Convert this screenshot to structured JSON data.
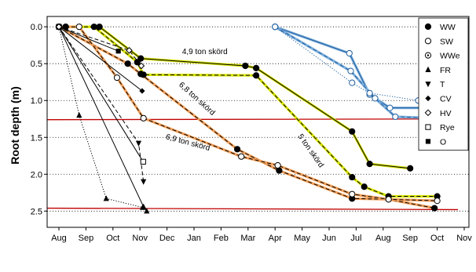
{
  "chart_data": {
    "type": "line",
    "title": "",
    "xlabel": "",
    "ylabel": "Root depth (m)",
    "x_ticks": [
      "Aug",
      "Sep",
      "Oct",
      "Nov",
      "Dec",
      "Jan",
      "Feb",
      "Mar",
      "Apr",
      "May",
      "Jun",
      "Jul",
      "Aug",
      "Sep",
      "Oct",
      "Nov"
    ],
    "xlim": [
      0,
      15
    ],
    "ylim": [
      2.72,
      -0.14
    ],
    "y_ticks": [
      "0.0",
      "0.5",
      "1.0",
      "1.5",
      "2.0",
      "2.5"
    ],
    "y_tick_values": [
      0,
      0.5,
      1.0,
      1.5,
      2.0,
      2.5
    ],
    "grid": "horizontal dotted",
    "legend_position": "top-right",
    "legend": [
      {
        "label": "WW",
        "marker": "circle-filled"
      },
      {
        "label": "SW",
        "marker": "circle-open"
      },
      {
        "label": "WWe",
        "marker": "circle-dot"
      },
      {
        "label": "FR",
        "marker": "triangle-up-filled"
      },
      {
        "label": "T",
        "marker": "triangle-down-filled"
      },
      {
        "label": "CV",
        "marker": "diamond-filled"
      },
      {
        "label": "HV",
        "marker": "diamond-open"
      },
      {
        "label": "Rye",
        "marker": "square-open"
      },
      {
        "label": "O",
        "marker": "square-filled"
      }
    ],
    "reference_lines": [
      {
        "y1": 1.26,
        "y2": 1.25,
        "color": "#c00000"
      },
      {
        "y1": 2.46,
        "y2": 2.48,
        "color": "#c00000"
      }
    ],
    "annotations": [
      {
        "text": "4,9 ton skörd",
        "x": 5.4,
        "y": 0.37,
        "angle": 0
      },
      {
        "text": "6,8 ton skörd",
        "x": 5.05,
        "y": 1.0,
        "angle": 42
      },
      {
        "text": "6,9 ton skörd",
        "x": 4.75,
        "y": 1.6,
        "angle": 15
      },
      {
        "text": "5 ton skörd",
        "x": 9.25,
        "y": 1.7,
        "angle": 55
      }
    ],
    "series": [
      {
        "marker": "circle-filled",
        "color": "#000000",
        "highlight": "#d8e400",
        "dash": "solid",
        "x": [
          0.0,
          0.25,
          1.5,
          3.03,
          6.9,
          7.3,
          10.85,
          11.5,
          13.0
        ],
        "y": [
          0.0,
          0.0,
          0.0,
          0.43,
          0.53,
          0.56,
          1.42,
          1.86,
          1.92
        ]
      },
      {
        "marker": "circle-filled",
        "color": "#000000",
        "highlight": "#d8e400",
        "dash": "dash",
        "x": [
          0.0,
          0.25,
          1.3,
          2.9,
          3.13,
          7.3,
          10.85,
          11.3,
          12.2,
          14.0
        ],
        "y": [
          0.0,
          0.0,
          0.0,
          0.48,
          0.65,
          0.66,
          2.04,
          2.17,
          2.3,
          2.3
        ]
      },
      {
        "marker": "circle-filled",
        "color": "#000000",
        "highlight": "#f3a05a",
        "dash": "dash",
        "x": [
          0.0,
          2.55,
          3.03,
          6.6,
          8.15,
          10.85,
          12.2,
          13.9
        ],
        "y": [
          0.0,
          0.5,
          0.64,
          1.66,
          1.95,
          2.33,
          2.34,
          2.46
        ]
      },
      {
        "marker": "circle-open",
        "color": "#000000",
        "highlight": "#f3a05a",
        "dash": "dash",
        "x": [
          0.0,
          0.75,
          2.15,
          3.13,
          6.75,
          8.1,
          10.85,
          12.2,
          14.0
        ],
        "y": [
          0.0,
          0.0,
          0.69,
          1.24,
          1.76,
          1.88,
          2.27,
          2.34,
          2.36
        ]
      },
      {
        "marker": "circle-open",
        "color": "#1f5fa0",
        "highlight": "#7fb0dc",
        "dash": "solid",
        "x": [
          8.0,
          10.75,
          11.5,
          12.25,
          14.0
        ],
        "y": [
          0.0,
          0.36,
          0.92,
          1.1,
          1.1
        ]
      },
      {
        "marker": "circle-open",
        "color": "#1f5fa0",
        "highlight": "#7fb0dc",
        "dash": "dash",
        "x": [
          8.0,
          10.8,
          11.7,
          12.45,
          14.0
        ],
        "y": [
          0.0,
          0.6,
          0.97,
          1.22,
          1.24
        ]
      },
      {
        "marker": "circle-open",
        "color": "#1f5fa0",
        "highlight": "",
        "dash": "dot",
        "x": [
          8.0,
          10.85,
          11.5,
          13.3
        ],
        "y": [
          0.0,
          0.76,
          0.9,
          1.0
        ]
      },
      {
        "marker": "triangle-up-filled",
        "color": "#000000",
        "highlight": "",
        "dash": "solid",
        "x": [
          0.0,
          3.13,
          3.25
        ],
        "y": [
          0.0,
          2.44,
          2.5
        ]
      },
      {
        "marker": "triangle-up-filled",
        "color": "#000000",
        "highlight": "",
        "dash": "dot",
        "x": [
          0.0,
          0.75,
          1.75,
          3.1
        ],
        "y": [
          0.0,
          1.2,
          2.33,
          2.45
        ]
      },
      {
        "marker": "triangle-down-filled",
        "color": "#000000",
        "highlight": "",
        "dash": "dash",
        "x": [
          0.0,
          2.95,
          3.13
        ],
        "y": [
          0.0,
          1.58,
          2.1
        ]
      },
      {
        "marker": "square-open",
        "color": "#000000",
        "highlight": "",
        "dash": "solid",
        "x": [
          0.0,
          3.12
        ],
        "y": [
          0.0,
          1.83
        ]
      },
      {
        "marker": "diamond-filled",
        "color": "#000000",
        "highlight": "",
        "dash": "solid",
        "x": [
          0.0,
          3.08
        ],
        "y": [
          0.0,
          0.87
        ]
      },
      {
        "marker": "square-filled",
        "color": "#000000",
        "highlight": "",
        "dash": "solid",
        "x": [
          0.0,
          2.2
        ],
        "y": [
          0.0,
          0.33
        ]
      },
      {
        "marker": "diamond-open",
        "color": "#000000",
        "highlight": "",
        "dash": "dash",
        "x": [
          0.0,
          2.6,
          3.05
        ],
        "y": [
          0.0,
          0.32,
          0.53
        ]
      }
    ]
  }
}
